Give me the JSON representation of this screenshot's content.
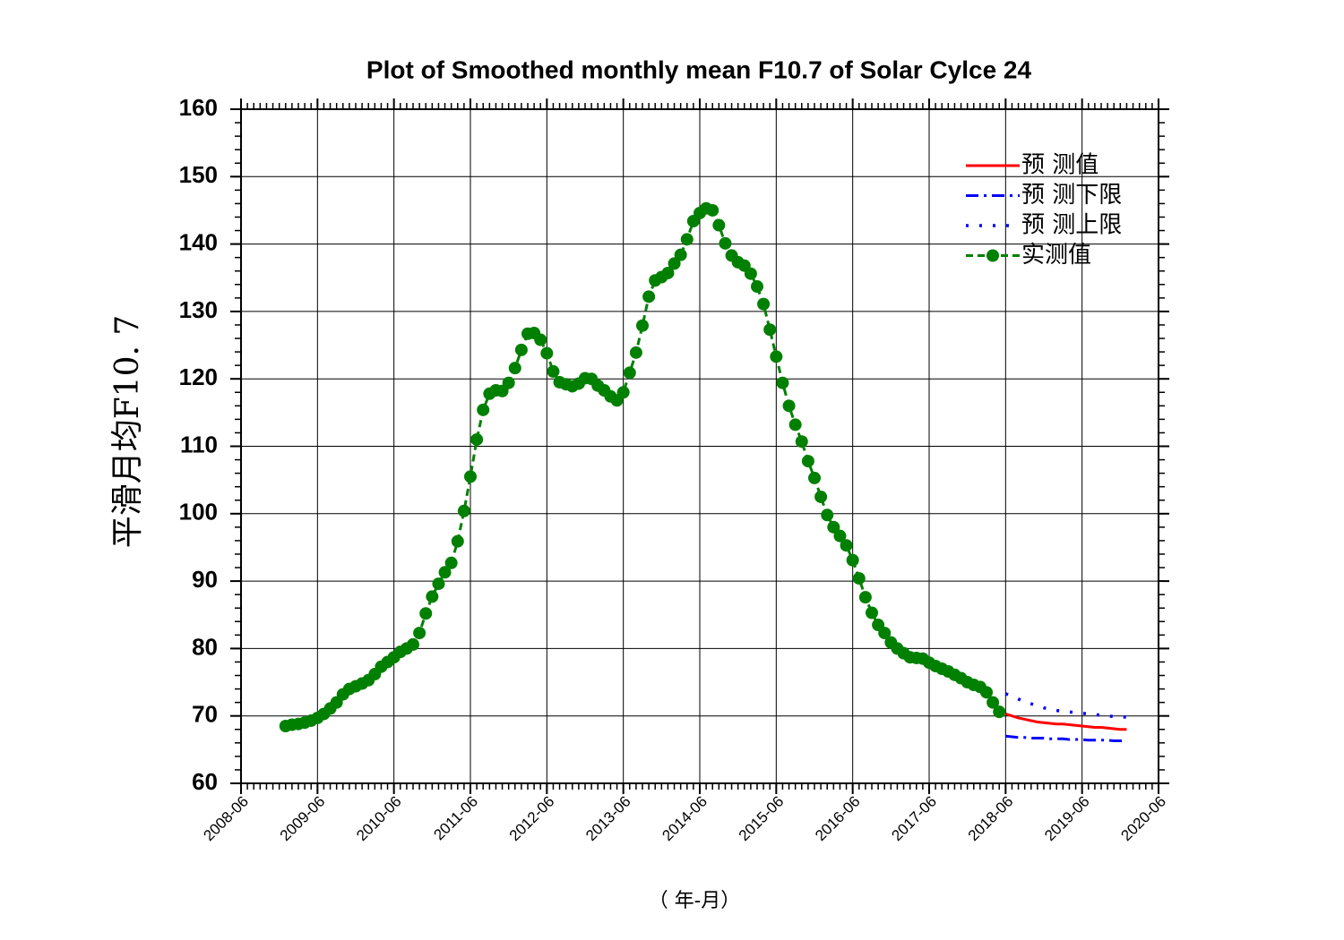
{
  "chart_data": {
    "type": "line",
    "title": "Plot of Smoothed monthly mean F10.7 of Solar Cylce 24",
    "y_label": "平滑月均F10. 7",
    "x_label": "（ 年-月）",
    "xlim": [
      "2008-06",
      "2020-06"
    ],
    "xticks": [
      "2008-06",
      "2009-06",
      "2010-06",
      "2011-06",
      "2012-06",
      "2013-06",
      "2014-06",
      "2015-06",
      "2016-06",
      "2017-06",
      "2018-06",
      "2019-06",
      "2020-06"
    ],
    "ylim": [
      60,
      160
    ],
    "yticks": [
      60,
      70,
      80,
      90,
      100,
      110,
      120,
      130,
      140,
      150,
      160
    ],
    "grid": true,
    "legend": "upper right",
    "series": [
      {
        "name": "预 测值",
        "color": "#ff0000",
        "style": "solid",
        "marker": "none",
        "x": [
          "2018-06",
          "2018-07",
          "2018-08",
          "2018-09",
          "2018-10",
          "2018-11",
          "2018-12",
          "2019-01",
          "2019-02",
          "2019-03",
          "2019-04",
          "2019-05",
          "2019-06",
          "2019-07",
          "2019-08",
          "2019-09",
          "2019-10",
          "2019-11",
          "2019-12",
          "2020-01"
        ],
        "values": [
          70.3,
          70.0,
          69.7,
          69.5,
          69.3,
          69.1,
          69.0,
          68.9,
          68.8,
          68.8,
          68.7,
          68.6,
          68.5,
          68.4,
          68.3,
          68.3,
          68.2,
          68.1,
          68.0,
          68.0
        ]
      },
      {
        "name": "预 测下限",
        "color": "#0000ff",
        "style": "dashdot",
        "marker": "none",
        "x": [
          "2018-06",
          "2018-07",
          "2018-08",
          "2018-09",
          "2018-10",
          "2018-11",
          "2018-12",
          "2019-01",
          "2019-02",
          "2019-03",
          "2019-04",
          "2019-05",
          "2019-06",
          "2019-07",
          "2019-08",
          "2019-09",
          "2019-10",
          "2019-11",
          "2019-12",
          "2020-01"
        ],
        "values": [
          67.0,
          66.9,
          66.8,
          66.8,
          66.7,
          66.7,
          66.7,
          66.6,
          66.6,
          66.6,
          66.5,
          66.5,
          66.5,
          66.4,
          66.4,
          66.4,
          66.4,
          66.3,
          66.3,
          66.3
        ]
      },
      {
        "name": "预 测上限",
        "color": "#0000ff",
        "style": "dot",
        "marker": "none",
        "x": [
          "2018-06",
          "2018-07",
          "2018-08",
          "2018-09",
          "2018-10",
          "2018-11",
          "2018-12",
          "2019-01",
          "2019-02",
          "2019-03",
          "2019-04",
          "2019-05",
          "2019-06",
          "2019-07",
          "2019-08",
          "2019-09",
          "2019-10",
          "2019-11",
          "2019-12",
          "2020-01"
        ],
        "values": [
          73.3,
          72.9,
          72.5,
          72.1,
          71.8,
          71.5,
          71.2,
          71.0,
          70.8,
          70.7,
          70.6,
          70.5,
          70.4,
          70.3,
          70.2,
          70.1,
          70.0,
          69.9,
          69.9,
          69.8
        ]
      },
      {
        "name": "实测值",
        "color": "#008000",
        "style": "dash",
        "marker": "circle",
        "x": [
          "2009-01",
          "2009-02",
          "2009-03",
          "2009-04",
          "2009-05",
          "2009-06",
          "2009-07",
          "2009-08",
          "2009-09",
          "2009-10",
          "2009-11",
          "2009-12",
          "2010-01",
          "2010-02",
          "2010-03",
          "2010-04",
          "2010-05",
          "2010-06",
          "2010-07",
          "2010-08",
          "2010-09",
          "2010-10",
          "2010-11",
          "2010-12",
          "2011-01",
          "2011-02",
          "2011-03",
          "2011-04",
          "2011-05",
          "2011-06",
          "2011-07",
          "2011-08",
          "2011-09",
          "2011-10",
          "2011-11",
          "2011-12",
          "2012-01",
          "2012-02",
          "2012-03",
          "2012-04",
          "2012-05",
          "2012-06",
          "2012-07",
          "2012-08",
          "2012-09",
          "2012-10",
          "2012-11",
          "2012-12",
          "2013-01",
          "2013-02",
          "2013-03",
          "2013-04",
          "2013-05",
          "2013-06",
          "2013-07",
          "2013-08",
          "2013-09",
          "2013-10",
          "2013-11",
          "2013-12",
          "2014-01",
          "2014-02",
          "2014-03",
          "2014-04",
          "2014-05",
          "2014-06",
          "2014-07",
          "2014-08",
          "2014-09",
          "2014-10",
          "2014-11",
          "2014-12",
          "2015-01",
          "2015-02",
          "2015-03",
          "2015-04",
          "2015-05",
          "2015-06",
          "2015-07",
          "2015-08",
          "2015-09",
          "2015-10",
          "2015-11",
          "2015-12",
          "2016-01",
          "2016-02",
          "2016-03",
          "2016-04",
          "2016-05",
          "2016-06",
          "2016-07",
          "2016-08",
          "2016-09",
          "2016-10",
          "2016-11",
          "2016-12",
          "2017-01",
          "2017-02",
          "2017-03",
          "2017-04",
          "2017-05",
          "2017-06",
          "2017-07",
          "2017-08",
          "2017-09",
          "2017-10",
          "2017-11",
          "2017-12",
          "2018-01",
          "2018-02",
          "2018-03",
          "2018-04",
          "2018-05"
        ],
        "values": [
          68.5,
          68.7,
          68.8,
          69.0,
          69.3,
          69.7,
          70.3,
          71.1,
          72.0,
          73.2,
          74.0,
          74.4,
          74.8,
          75.3,
          76.2,
          77.3,
          78.0,
          78.7,
          79.5,
          80.0,
          80.6,
          82.3,
          85.2,
          87.7,
          89.6,
          91.3,
          92.7,
          95.9,
          100.4,
          105.5,
          111.0,
          115.4,
          117.8,
          118.3,
          118.2,
          119.4,
          121.6,
          124.3,
          126.7,
          126.8,
          125.8,
          123.8,
          121.1,
          119.5,
          119.2,
          118.9,
          119.3,
          120.1,
          120.0,
          119.0,
          118.3,
          117.4,
          116.8,
          118.0,
          120.9,
          123.9,
          127.9,
          132.2,
          134.6,
          135.1,
          135.7,
          137.1,
          138.4,
          140.7,
          143.4,
          144.6,
          145.3,
          145.0,
          142.8,
          140.1,
          138.3,
          137.3,
          136.8,
          135.6,
          133.7,
          131.1,
          127.3,
          123.3,
          119.4,
          116.0,
          113.2,
          110.7,
          107.8,
          105.3,
          102.5,
          99.8,
          98.0,
          96.7,
          95.3,
          93.1,
          90.4,
          87.6,
          85.3,
          83.5,
          82.3,
          80.9,
          80.0,
          79.3,
          78.7,
          78.6,
          78.5,
          77.9,
          77.4,
          77.0,
          76.6,
          76.1,
          75.6,
          75.0,
          74.6,
          74.3,
          73.5,
          72.0,
          70.6
        ]
      }
    ]
  }
}
